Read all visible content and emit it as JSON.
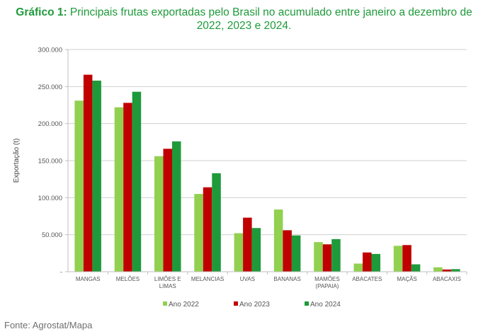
{
  "title": {
    "prefix": "Gráfico 1:",
    "line1": " Principais frutas exportadas pelo Brasil no acumulado entre janeiro a dezembro de",
    "line2": "2022, 2023 e 2024."
  },
  "source": "Fonte: Agrostat/Mapa",
  "chart_data": {
    "type": "bar",
    "title": "Gráfico 1: Principais frutas exportadas pelo Brasil no acumulado entre janeiro a dezembro de 2022, 2023 e 2024.",
    "xlabel": "",
    "ylabel": "Exportação (t)",
    "ylim": [
      0,
      300000
    ],
    "yticks": [
      0,
      50000,
      100000,
      150000,
      200000,
      250000,
      300000
    ],
    "ytick_labels": [
      "-",
      "50.000",
      "100.000",
      "150.000",
      "200.000",
      "250.000",
      "300.000"
    ],
    "grid": true,
    "legend_position": "bottom",
    "categories": [
      [
        "MANGAS"
      ],
      [
        "MELÕES"
      ],
      [
        "LIMÕES E",
        "LIMAS"
      ],
      [
        "MELANCIAS"
      ],
      [
        "UVAS"
      ],
      [
        "BANANAS"
      ],
      [
        "MAMÕES",
        "(PAPAIA)"
      ],
      [
        "ABACATES"
      ],
      [
        "MAÇÃS"
      ],
      [
        "ABACAXIS"
      ]
    ],
    "series": [
      {
        "name": "Ano 2022",
        "color": "#92d050",
        "values": [
          231000,
          222000,
          156000,
          105000,
          52000,
          84000,
          40000,
          11000,
          35000,
          6000
        ]
      },
      {
        "name": "Ano 2023",
        "color": "#c00000",
        "values": [
          266000,
          228000,
          166000,
          114000,
          73000,
          56000,
          37000,
          26000,
          36000,
          3000
        ]
      },
      {
        "name": "Ano 2024",
        "color": "#1e9a3a",
        "values": [
          258000,
          243000,
          176000,
          133000,
          59000,
          49000,
          44000,
          24000,
          10000,
          3500
        ]
      }
    ]
  }
}
